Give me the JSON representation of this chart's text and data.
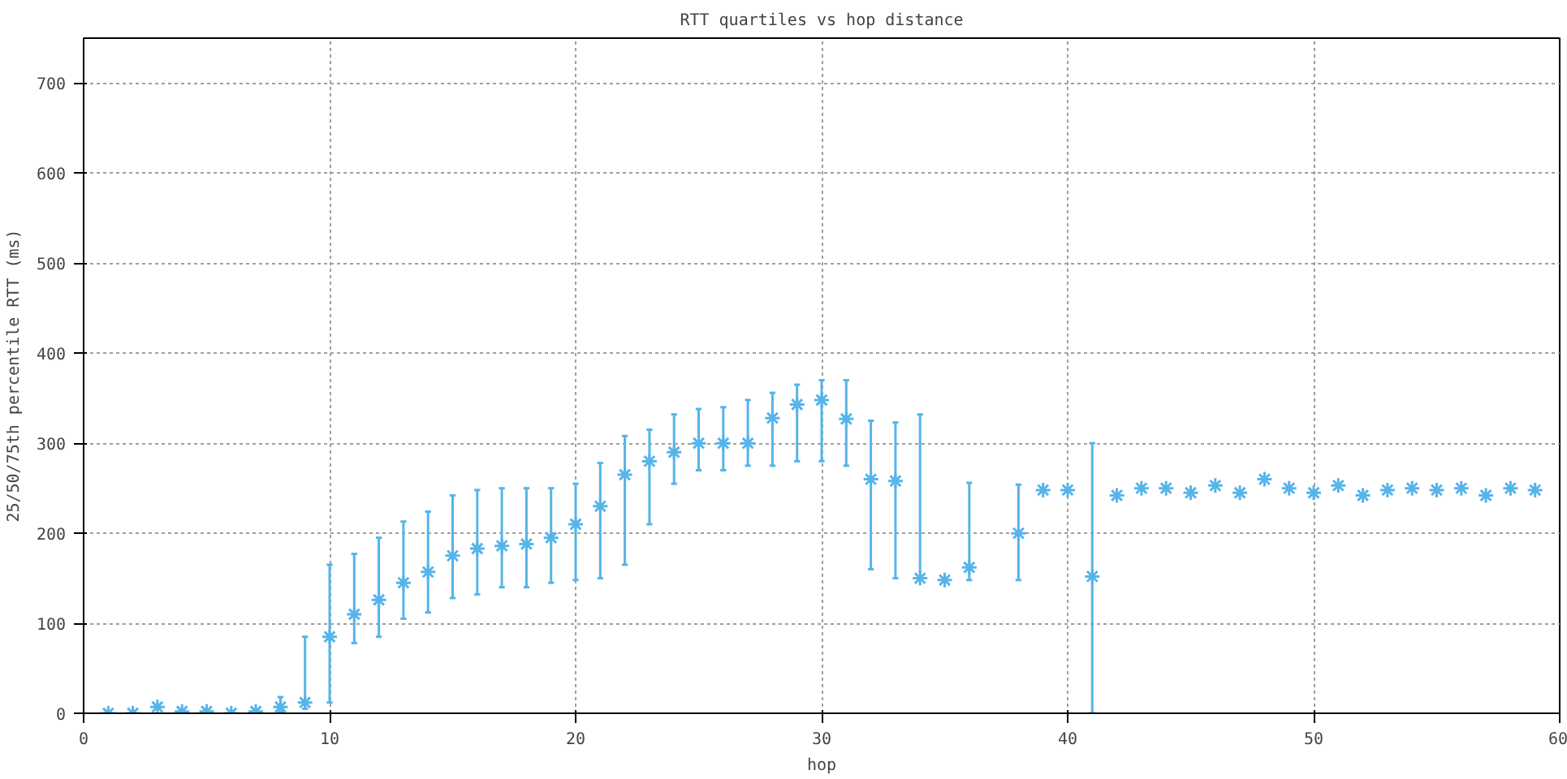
{
  "chart_data": {
    "type": "scatter",
    "title": "RTT quartiles vs hop distance",
    "xlabel": "hop",
    "ylabel": "25/50/75th percentile RTT (ms)",
    "xlim": [
      0,
      60
    ],
    "xticks": [
      0,
      10,
      20,
      30,
      40,
      50,
      60
    ],
    "ylim": [
      0,
      750
    ],
    "yticks": [
      0,
      100,
      200,
      300,
      400,
      500,
      600,
      700
    ],
    "grid": true,
    "marker": "cross",
    "series": [
      {
        "color": "#56b4e9",
        "x": [
          1,
          2,
          3,
          4,
          5,
          6,
          7,
          8,
          9,
          10,
          11,
          12,
          13,
          14,
          15,
          16,
          17,
          18,
          19,
          20,
          21,
          22,
          23,
          24,
          25,
          26,
          27,
          28,
          29,
          30,
          31,
          32,
          33,
          34,
          35,
          36,
          38,
          39,
          40,
          41,
          42,
          43,
          44,
          45,
          46,
          47,
          48,
          49,
          50,
          51,
          52,
          53,
          54,
          55,
          56,
          57,
          58,
          59
        ],
        "values": [
          0,
          0,
          7,
          2,
          2,
          0,
          2,
          7,
          12,
          85,
          110,
          126,
          145,
          157,
          175,
          183,
          186,
          188,
          195,
          210,
          230,
          265,
          280,
          290,
          300,
          300,
          300,
          328,
          343,
          348,
          327,
          260,
          258,
          150,
          148,
          162,
          200,
          248,
          248,
          152,
          242,
          250,
          250,
          245,
          253,
          245,
          260,
          250,
          245,
          253,
          242,
          248,
          250,
          248,
          250,
          242,
          250,
          248
        ],
        "errors": [
          null,
          null,
          null,
          null,
          null,
          null,
          null,
          [
            2,
            18
          ],
          [
            5,
            85
          ],
          [
            12,
            165
          ],
          [
            78,
            177
          ],
          [
            85,
            195
          ],
          [
            105,
            213
          ],
          [
            112,
            224
          ],
          [
            128,
            242
          ],
          [
            132,
            248
          ],
          [
            140,
            250
          ],
          [
            140,
            250
          ],
          [
            145,
            250
          ],
          [
            148,
            255
          ],
          [
            150,
            278
          ],
          [
            165,
            308
          ],
          [
            210,
            315
          ],
          [
            255,
            332
          ],
          [
            270,
            338
          ],
          [
            270,
            340
          ],
          [
            275,
            348
          ],
          [
            275,
            356
          ],
          [
            280,
            365
          ],
          [
            280,
            370
          ],
          [
            275,
            370
          ],
          [
            160,
            325
          ],
          [
            150,
            323
          ],
          [
            150,
            332
          ],
          null,
          [
            148,
            256
          ],
          [
            148,
            254
          ],
          null,
          null,
          [
            0,
            300
          ],
          null,
          null,
          null,
          null,
          null,
          null,
          null,
          null,
          null,
          null,
          null,
          null,
          null,
          null,
          null,
          null,
          null,
          null
        ]
      }
    ]
  }
}
